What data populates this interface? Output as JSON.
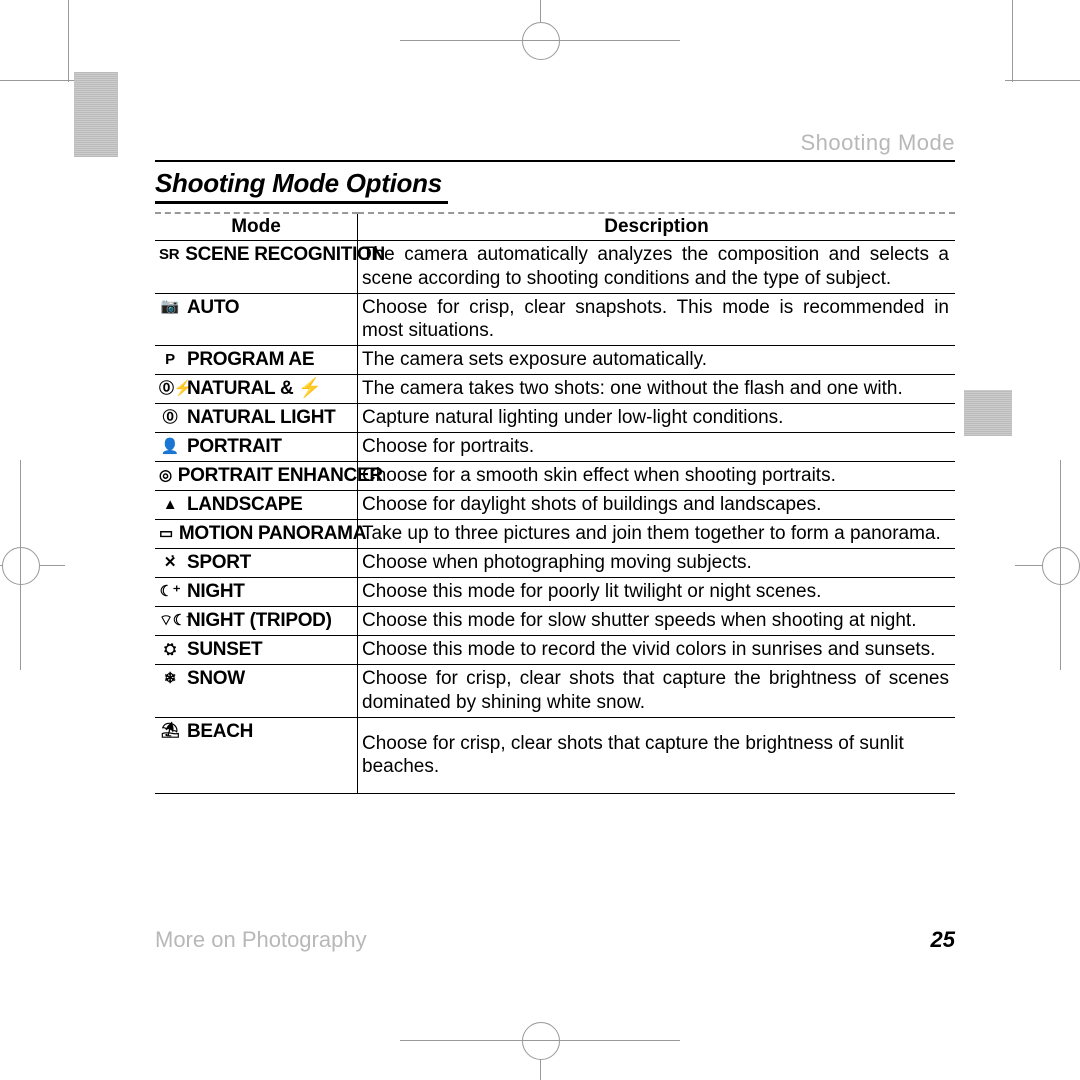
{
  "running_head": "Shooting Mode",
  "section_title": "Shooting Mode Options",
  "columns": {
    "mode": "Mode",
    "description": "Description"
  },
  "rows": [
    {
      "icon": "sr-auto-icon",
      "glyph": "SR",
      "label": "SCENE RECOGNITION",
      "desc": "The camera automatically analyzes the composition and selects a scene according to shooting conditions and the type of subject.",
      "justify": true
    },
    {
      "icon": "camera-icon",
      "glyph": "📷",
      "label": "AUTO",
      "desc": "Choose for crisp, clear snapshots.  This mode is recommended in most situations.",
      "justify": true
    },
    {
      "icon": "p-icon",
      "glyph": "P",
      "label": "PROGRAM AE",
      "desc": "The camera sets exposure automatically."
    },
    {
      "icon": "nat-flash-icon",
      "glyph": "⓪⚡",
      "label": "NATURAL & ⚡",
      "desc": "The camera takes two shots: one without the flash and one with."
    },
    {
      "icon": "nat-light-icon",
      "glyph": "⓪",
      "label": "NATURAL LIGHT",
      "desc": "Capture natural lighting under low-light conditions."
    },
    {
      "icon": "portrait-icon",
      "glyph": "👤",
      "label": "PORTRAIT",
      "desc": "Choose for portraits."
    },
    {
      "icon": "enhancer-icon",
      "glyph": "◎",
      "label": "PORTRAIT ENHANCER",
      "desc": "Choose for a smooth skin effect when shooting portraits."
    },
    {
      "icon": "landscape-icon",
      "glyph": "▲",
      "label": "LANDSCAPE",
      "desc": "Choose for daylight shots of buildings and landscapes."
    },
    {
      "icon": "panorama-icon",
      "glyph": "▭",
      "label": "MOTION PANORAMA",
      "desc": "Take up to three pictures and join them together to form a panorama."
    },
    {
      "icon": "sport-icon",
      "glyph": "✕̇",
      "label": "SPORT",
      "desc": "Choose when photographing moving subjects."
    },
    {
      "icon": "night-icon",
      "glyph": "☾⁺",
      "label": "NIGHT",
      "desc": "Choose this mode for poorly lit twilight or night scenes."
    },
    {
      "icon": "tripod-icon",
      "glyph": "⌔☾⁺",
      "label": "NIGHT (TRIPOD)",
      "desc": "Choose this mode for slow shutter speeds when shooting at night."
    },
    {
      "icon": "sunset-icon",
      "glyph": "⛭",
      "label": "SUNSET",
      "desc": "Choose this mode to record the vivid colors in sunrises and sunsets."
    },
    {
      "icon": "snow-icon",
      "glyph": "❄",
      "label": "SNOW",
      "desc": "Choose for crisp, clear shots that capture the brightness of scenes dominated by shining white snow.",
      "justify": true
    },
    {
      "icon": "beach-icon",
      "glyph": "⛱",
      "label": "BEACH",
      "desc": "Choose for crisp, clear shots that capture the brightness of sunlit beaches.",
      "tall": true
    }
  ],
  "footer": {
    "chapter": "More on Photography",
    "page": "25"
  }
}
